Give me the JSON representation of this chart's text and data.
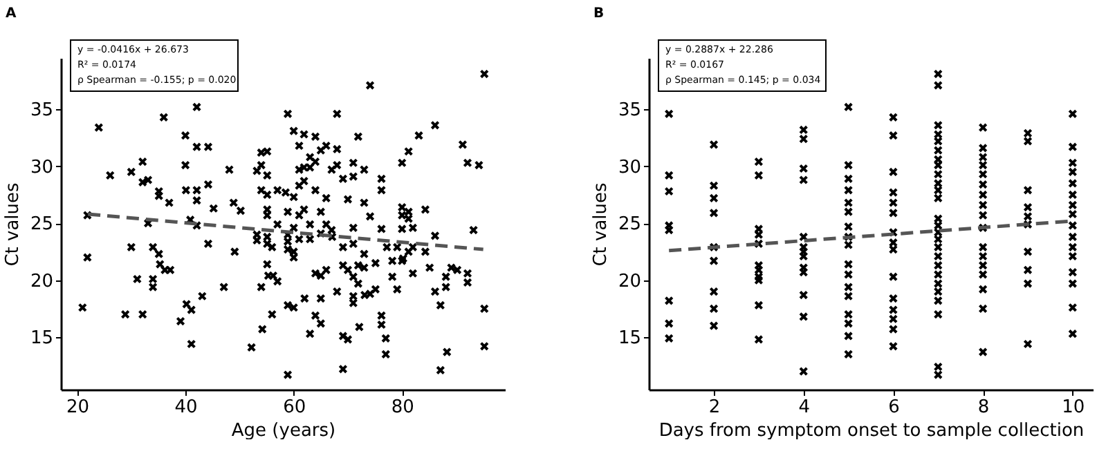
{
  "chart_data": [
    {
      "type": "scatter",
      "title": "A",
      "xlabel": "Age (years)",
      "ylabel": "Ct values",
      "xlim": [
        17,
        99
      ],
      "ylim": [
        10.4,
        39.5
      ],
      "xticks": [
        20,
        40,
        60,
        80
      ],
      "yticks": [
        15,
        20,
        25,
        30,
        35
      ],
      "annotations": [
        "y = -0.0416x + 26.673",
        "R² = 0.0174",
        "ρ Spearman = -0.155; p = 0.020"
      ],
      "series": [
        {
          "type": "scatter",
          "marker": "cross",
          "color": "#000000",
          "x": [
            21,
            21.9,
            21.9,
            24,
            26.1,
            28.9,
            30,
            30,
            31.1,
            32.1,
            32.1,
            32.1,
            33.1,
            33.1,
            34,
            34,
            34,
            35.1,
            35.1,
            35.1,
            35.3,
            36,
            36.2,
            37.2,
            37,
            39.1,
            40,
            40,
            40.1,
            40.2,
            40.9,
            41.1,
            41.1,
            42.1,
            42.1,
            42.1,
            42.1,
            42.1,
            43.1,
            44.2,
            44.2,
            44.2,
            45.2,
            47.1,
            48.1,
            48.9,
            49.1,
            50.2,
            52.2,
            53.2,
            53.2,
            53.2,
            54,
            54,
            54,
            54,
            54.2,
            55.1,
            55.1,
            55.1,
            55.1,
            55.1,
            55.1,
            55.1,
            55.1,
            55.3,
            56,
            56,
            56.2,
            57,
            57,
            57,
            58.9,
            58.9,
            58.9,
            58.9,
            58.9,
            58.9,
            58.9,
            58.5,
            60,
            60,
            60,
            60,
            60,
            60,
            61,
            61,
            61,
            61,
            61,
            61.9,
            61.9,
            61.9,
            61.9,
            62,
            63,
            63,
            63,
            63,
            63,
            64,
            64,
            64,
            64,
            64,
            65,
            65,
            65,
            65,
            65,
            65,
            66,
            66,
            66,
            66,
            67,
            67,
            67.1,
            68,
            68,
            68,
            68,
            69.1,
            69.1,
            69.1,
            69.1,
            69.1,
            70,
            70,
            70,
            71,
            71,
            71,
            71,
            71,
            71,
            71,
            71.9,
            71.9,
            71.9,
            72.1,
            73,
            73,
            73,
            73,
            73.1,
            74.1,
            74.1,
            74.1,
            75.1,
            75.1,
            76.2,
            76.2,
            76.2,
            76.2,
            76.2,
            77,
            77,
            77.2,
            78.2,
            78.2,
            79.1,
            79.1,
            80,
            80,
            80,
            80,
            80,
            80.2,
            81.2,
            81.2,
            81.2,
            81.2,
            82,
            82,
            82,
            83.1,
            84.3,
            84.3,
            85.1,
            86.1,
            86.1,
            86.1,
            87.1,
            87.1,
            88.1,
            88.1,
            88.3,
            89.1,
            90.2,
            91.2,
            92.1,
            92.1,
            92.1,
            93.2,
            94.2,
            95.2,
            95.2,
            95.2
          ],
          "values": [
            17.6,
            25.7,
            22.0,
            33.4,
            29.2,
            17.0,
            22.9,
            29.5,
            20.1,
            30.4,
            28.6,
            17.0,
            28.8,
            25.0,
            22.9,
            20.1,
            19.4,
            27.8,
            27.4,
            22.3,
            21.4,
            34.3,
            20.9,
            20.9,
            26.8,
            16.4,
            32.7,
            30.1,
            27.9,
            17.9,
            25.3,
            17.4,
            14.4,
            35.2,
            31.7,
            27.9,
            27.0,
            24.8,
            18.6,
            31.7,
            28.4,
            23.2,
            26.3,
            19.4,
            29.7,
            26.8,
            22.5,
            26.1,
            14.1,
            29.6,
            24.0,
            23.5,
            31.2,
            30.1,
            27.9,
            19.4,
            15.7,
            31.3,
            29.2,
            27.5,
            26.2,
            25.7,
            23.8,
            23.2,
            21.4,
            20.4,
            17.0,
            22.9,
            20.4,
            27.9,
            24.9,
            19.9,
            34.6,
            26.0,
            24.0,
            23.4,
            22.7,
            17.8,
            11.7,
            27.7,
            33.1,
            27.3,
            24.6,
            22.5,
            22.0,
            17.6,
            31.8,
            29.7,
            28.3,
            25.7,
            23.6,
            32.8,
            29.9,
            28.7,
            26.2,
            18.4,
            30.8,
            29.9,
            24.9,
            23.6,
            15.3,
            32.6,
            30.4,
            27.9,
            20.6,
            16.9,
            31.4,
            26.0,
            24.1,
            20.4,
            18.4,
            16.2,
            31.8,
            27.2,
            24.9,
            20.9,
            29.7,
            24.4,
            23.8,
            34.6,
            31.5,
            30.1,
            19.0,
            28.9,
            22.9,
            21.3,
            15.1,
            12.2,
            27.1,
            20.9,
            14.8,
            30.3,
            29.1,
            24.6,
            23.2,
            20.3,
            18.6,
            18.0,
            32.6,
            21.3,
            19.7,
            15.9,
            29.7,
            26.8,
            22.3,
            21.1,
            18.7,
            37.1,
            25.6,
            18.8,
            21.5,
            19.2,
            28.9,
            27.9,
            24.5,
            16.9,
            16.1,
            14.9,
            13.5,
            22.9,
            21.7,
            20.3,
            22.9,
            19.2,
            30.3,
            26.4,
            25.7,
            24.5,
            21.7,
            21.9,
            31.3,
            26.0,
            25.4,
            22.5,
            24.6,
            22.9,
            20.6,
            32.7,
            26.2,
            22.5,
            21.1,
            33.6,
            23.9,
            19.0,
            17.8,
            12.1,
            20.3,
            19.4,
            13.7,
            21.1,
            20.9,
            31.9,
            30.3,
            20.6,
            19.8,
            24.4,
            30.1,
            38.1,
            17.5,
            14.2
          ]
        },
        {
          "type": "line",
          "color": "#555555",
          "line_style": "dashed",
          "x": [
            22,
            95
          ],
          "values": [
            25.8,
            22.7
          ]
        }
      ]
    },
    {
      "type": "scatter",
      "title": "B",
      "xlabel": "Days from symptom onset to sample collection",
      "ylabel": "Ct values",
      "xlim": [
        0.55,
        10.45
      ],
      "ylim": [
        10.4,
        39.5
      ],
      "xticks": [
        2,
        4,
        6,
        8,
        10
      ],
      "yticks": [
        15,
        20,
        25,
        30,
        35
      ],
      "annotations": [
        "y = 0.2887x + 22.286",
        "R² = 0.0167",
        "ρ Spearman = 0.145; p = 0.034"
      ],
      "series": [
        {
          "type": "scatter",
          "marker": "cross",
          "color": "#000000",
          "x": [
            1,
            1,
            1,
            1,
            1,
            1,
            1,
            1,
            2,
            2,
            2,
            2,
            2,
            2,
            2,
            2,
            2,
            3,
            3,
            3,
            3,
            3,
            3,
            3,
            3,
            3,
            3,
            3,
            4,
            4,
            4,
            4,
            4,
            4,
            4,
            4,
            4,
            4,
            4,
            4,
            4,
            5,
            5,
            5,
            5,
            5,
            5,
            5,
            5,
            5,
            5,
            5,
            5,
            5,
            5,
            5,
            5,
            5,
            6,
            6,
            6,
            6,
            6,
            6,
            6,
            6,
            6,
            6,
            6,
            6,
            6,
            6,
            6,
            7,
            7,
            7,
            7,
            7,
            7,
            7,
            7,
            7,
            7,
            7,
            7,
            7,
            7,
            7,
            7,
            7,
            7,
            7,
            7,
            7,
            7,
            7,
            7,
            7,
            7,
            8,
            8,
            8,
            8,
            8,
            8,
            8,
            8,
            8,
            8,
            8,
            8,
            8,
            8,
            8,
            8,
            8,
            9,
            9,
            9,
            9,
            9,
            9,
            9,
            9,
            9,
            9,
            10,
            10,
            10,
            10,
            10,
            10,
            10,
            10,
            10,
            10,
            10,
            10,
            10,
            10,
            10,
            10
          ],
          "values": [
            34.6,
            29.2,
            27.8,
            24.8,
            24.4,
            18.2,
            16.2,
            14.9,
            31.9,
            28.3,
            27.2,
            25.9,
            22.9,
            21.7,
            19.0,
            17.5,
            16.0,
            30.4,
            29.2,
            24.5,
            24.0,
            23.2,
            21.3,
            20.9,
            20.3,
            20.0,
            17.8,
            14.8,
            33.2,
            32.4,
            29.8,
            28.8,
            23.8,
            22.9,
            22.5,
            22.1,
            21.1,
            20.7,
            18.7,
            16.8,
            12.0,
            35.2,
            30.1,
            28.9,
            27.9,
            26.8,
            26.0,
            24.7,
            23.8,
            23.1,
            21.4,
            20.5,
            19.4,
            18.6,
            17.0,
            16.2,
            15.1,
            13.5,
            34.3,
            32.7,
            29.5,
            27.7,
            26.8,
            25.9,
            24.2,
            23.3,
            22.7,
            20.3,
            18.4,
            17.4,
            16.6,
            15.7,
            14.2,
            38.1,
            37.1,
            33.6,
            32.8,
            32.2,
            31.4,
            30.6,
            30.1,
            29.3,
            28.5,
            27.9,
            27.2,
            25.4,
            24.8,
            24.2,
            23.6,
            22.9,
            22.1,
            21.3,
            20.5,
            19.7,
            19.0,
            18.2,
            17.0,
            12.4,
            11.7,
            33.4,
            31.6,
            30.8,
            30.1,
            29.3,
            28.4,
            27.5,
            26.6,
            25.7,
            24.6,
            22.9,
            22.1,
            21.3,
            20.5,
            19.2,
            17.5,
            13.7,
            32.9,
            32.2,
            27.9,
            26.4,
            25.6,
            24.9,
            22.5,
            20.9,
            19.7,
            14.4,
            34.6,
            31.7,
            30.3,
            29.5,
            28.5,
            27.5,
            26.6,
            25.8,
            24.8,
            23.8,
            22.9,
            22.1,
            20.7,
            19.7,
            17.6,
            15.3
          ]
        },
        {
          "type": "line",
          "color": "#555555",
          "line_style": "dashed",
          "x": [
            1,
            10
          ],
          "values": [
            22.6,
            25.2
          ]
        }
      ]
    }
  ]
}
